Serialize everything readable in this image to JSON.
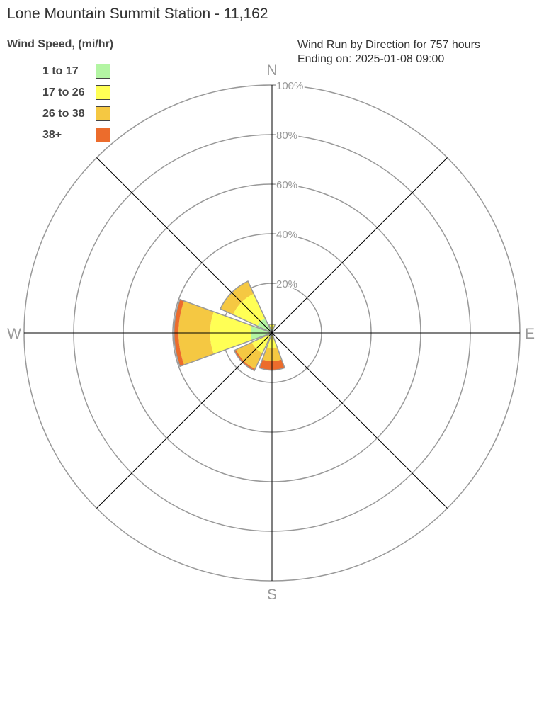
{
  "title": "Lone Mountain Summit Station - 11,162",
  "legend": {
    "title": "Wind Speed, (mi/hr)",
    "items": [
      {
        "label": "1 to 17",
        "color": "#b3f5a3"
      },
      {
        "label": "17 to 26",
        "color": "#ffff55"
      },
      {
        "label": "26 to 38",
        "color": "#f5c842"
      },
      {
        "label": "38+",
        "color": "#ec6c2c"
      }
    ]
  },
  "subtitle": {
    "line1": "Wind Run by Direction for 757 hours",
    "line2": "Ending on: 2025-01-08 09:00"
  },
  "chart_data": {
    "type": "wind-rose",
    "unit": "%",
    "radial_ticks": [
      "20%",
      "40%",
      "60%",
      "80%",
      "100%"
    ],
    "radial_range": [
      0,
      100
    ],
    "compass_labels": {
      "N": "N",
      "E": "E",
      "S": "S",
      "W": "W"
    },
    "speed_bins": [
      "1 to 17",
      "17 to 26",
      "26 to 38",
      "38+"
    ],
    "directions": [
      "N",
      "NE",
      "E",
      "SE",
      "S",
      "SW",
      "W",
      "NW"
    ],
    "direction_angles": [
      0,
      45,
      90,
      135,
      180,
      225,
      270,
      315
    ],
    "series": [
      {
        "name": "1 to 17",
        "values": [
          1.5,
          0,
          0,
          0,
          1.5,
          1.5,
          8.6,
          6.5
        ]
      },
      {
        "name": "17 to 26",
        "values": [
          2.0,
          0,
          0,
          0,
          4.8,
          7.5,
          16.4,
          10.9
        ]
      },
      {
        "name": "26 to 38",
        "values": [
          0,
          0,
          0,
          0,
          5.1,
          7.0,
          12.7,
          5.6
        ]
      },
      {
        "name": "38+",
        "values": [
          0,
          0,
          0,
          0,
          3.6,
          0.8,
          1.8,
          0
        ]
      }
    ]
  }
}
